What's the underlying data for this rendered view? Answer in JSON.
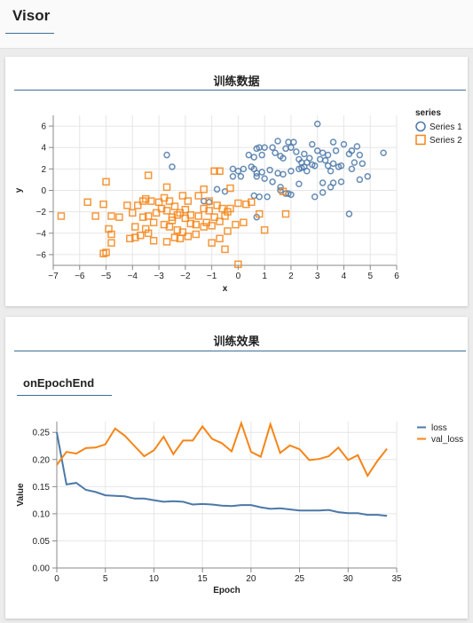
{
  "app": {
    "title": "Visor"
  },
  "card1": {
    "title": "训练数据",
    "chart_data": {
      "type": "scatter",
      "xlabel": "x",
      "ylabel": "y",
      "xlim": [
        -7,
        6
      ],
      "ylim": [
        -7,
        7
      ],
      "xticks": [
        -7,
        -6,
        -5,
        -4,
        -3,
        -2,
        -1,
        0,
        1,
        2,
        3,
        4,
        5,
        6
      ],
      "yticks": [
        -6,
        -4,
        -2,
        0,
        2,
        4,
        6
      ],
      "grid": true,
      "legend": {
        "title": "series",
        "position": "right"
      },
      "series": [
        {
          "name": "Series 1",
          "marker": "circle",
          "color": "#4c78a8",
          "points": [
            [
              3.0,
              6.2
            ],
            [
              1.5,
              4.6
            ],
            [
              1.9,
              4.5
            ],
            [
              2.1,
              4.5
            ],
            [
              3.6,
              4.5
            ],
            [
              4.0,
              4.3
            ],
            [
              4.3,
              3.7
            ],
            [
              4.5,
              4.1
            ],
            [
              2.8,
              4.3
            ],
            [
              5.5,
              3.5
            ],
            [
              0.7,
              3.9
            ],
            [
              0.8,
              4.0
            ],
            [
              1.0,
              4.0
            ],
            [
              1.3,
              4.0
            ],
            [
              1.8,
              3.9
            ],
            [
              2.0,
              4.0
            ],
            [
              2.2,
              3.6
            ],
            [
              2.5,
              3.4
            ],
            [
              2.7,
              3.0
            ],
            [
              3.0,
              3.7
            ],
            [
              3.2,
              3.5
            ],
            [
              3.4,
              3.3
            ],
            [
              3.7,
              3.7
            ],
            [
              4.2,
              3.4
            ],
            [
              4.6,
              3.3
            ],
            [
              -2.7,
              3.3
            ],
            [
              -2.5,
              2.2
            ],
            [
              0.4,
              3.3
            ],
            [
              0.6,
              3.1
            ],
            [
              0.9,
              3.3
            ],
            [
              1.4,
              3.5
            ],
            [
              1.6,
              3.2
            ],
            [
              1.7,
              3.0
            ],
            [
              2.3,
              2.9
            ],
            [
              2.4,
              2.6
            ],
            [
              2.6,
              2.6
            ],
            [
              2.8,
              2.4
            ],
            [
              3.1,
              2.9
            ],
            [
              3.3,
              2.8
            ],
            [
              3.6,
              2.5
            ],
            [
              3.9,
              2.3
            ],
            [
              4.4,
              2.6
            ],
            [
              4.7,
              2.5
            ],
            [
              -0.2,
              2.0
            ],
            [
              0.0,
              1.8
            ],
            [
              0.2,
              2.0
            ],
            [
              0.5,
              2.2
            ],
            [
              0.6,
              2.0
            ],
            [
              0.7,
              1.6
            ],
            [
              0.9,
              1.7
            ],
            [
              1.2,
              1.9
            ],
            [
              1.5,
              1.6
            ],
            [
              1.7,
              1.5
            ],
            [
              2.0,
              1.8
            ],
            [
              2.3,
              2.0
            ],
            [
              2.4,
              2.1
            ],
            [
              2.5,
              2.2
            ],
            [
              2.6,
              1.8
            ],
            [
              2.9,
              2.3
            ],
            [
              3.4,
              2.3
            ],
            [
              3.5,
              1.8
            ],
            [
              3.8,
              2.2
            ],
            [
              4.3,
              2.0
            ],
            [
              4.9,
              1.3
            ],
            [
              -0.2,
              1.3
            ],
            [
              0.1,
              1.3
            ],
            [
              0.7,
              1.3
            ],
            [
              1.0,
              1.1
            ],
            [
              1.3,
              0.8
            ],
            [
              1.6,
              0.3
            ],
            [
              1.9,
              -0.3
            ],
            [
              2.0,
              -0.4
            ],
            [
              2.3,
              0.6
            ],
            [
              3.2,
              0.7
            ],
            [
              3.5,
              0.3
            ],
            [
              3.6,
              0.7
            ],
            [
              3.9,
              0.8
            ],
            [
              4.6,
              1.0
            ],
            [
              -0.8,
              0.1
            ],
            [
              -0.5,
              -0.1
            ],
            [
              -1.3,
              -1.0
            ],
            [
              -1.1,
              -1.1
            ],
            [
              0.6,
              -0.5
            ],
            [
              0.8,
              -0.6
            ],
            [
              1.1,
              -0.6
            ],
            [
              1.6,
              0.0
            ],
            [
              1.8,
              -0.3
            ],
            [
              2.9,
              -0.6
            ],
            [
              3.2,
              -0.2
            ],
            [
              4.2,
              -2.2
            ],
            [
              0.7,
              -2.5
            ]
          ]
        },
        {
          "name": "Series 2",
          "marker": "square",
          "color": "#f58518",
          "points": [
            [
              -6.7,
              -2.4
            ],
            [
              -5.7,
              -1.1
            ],
            [
              -5.0,
              0.8
            ],
            [
              -3.4,
              1.4
            ],
            [
              -2.7,
              0.3
            ],
            [
              -2.1,
              -0.5
            ],
            [
              -1.3,
              0.1
            ],
            [
              -0.9,
              1.8
            ],
            [
              -0.7,
              1.8
            ],
            [
              -0.3,
              0.2
            ],
            [
              -5.4,
              -2.4
            ],
            [
              -5.1,
              -1.3
            ],
            [
              -4.8,
              -2.4
            ],
            [
              -4.9,
              -3.6
            ],
            [
              -4.8,
              -4.1
            ],
            [
              -4.8,
              -4.9
            ],
            [
              -5.1,
              -5.9
            ],
            [
              -5.0,
              -5.8
            ],
            [
              -4.5,
              -2.5
            ],
            [
              -4.2,
              -1.4
            ],
            [
              -4.0,
              -2.1
            ],
            [
              -3.8,
              -1.4
            ],
            [
              -3.6,
              -1.0
            ],
            [
              -3.5,
              -0.8
            ],
            [
              -3.3,
              -1.0
            ],
            [
              -3.6,
              -2.5
            ],
            [
              -3.4,
              -2.4
            ],
            [
              -3.2,
              -3.0
            ],
            [
              -3.1,
              -2.1
            ],
            [
              -2.9,
              -1.7
            ],
            [
              -3.5,
              -3.6
            ],
            [
              -3.4,
              -4.0
            ],
            [
              -3.2,
              -4.7
            ],
            [
              -3.9,
              -3.4
            ],
            [
              -3.7,
              -4.2
            ],
            [
              -3.9,
              -4.4
            ],
            [
              -2.8,
              -0.7
            ],
            [
              -2.6,
              -1.0
            ],
            [
              -2.4,
              -1.5
            ],
            [
              -2.2,
              -2.1
            ],
            [
              -2.0,
              -1.8
            ],
            [
              -1.8,
              -2.3
            ],
            [
              -1.5,
              -2.4
            ],
            [
              -1.3,
              -1.7
            ],
            [
              -1.1,
              -1.9
            ],
            [
              -0.8,
              -1.4
            ],
            [
              -0.6,
              -1.7
            ],
            [
              -0.3,
              -1.7
            ],
            [
              0.0,
              -1.2
            ],
            [
              0.3,
              -1.3
            ],
            [
              0.5,
              -1.1
            ],
            [
              -2.7,
              -1.9
            ],
            [
              -2.5,
              -2.5
            ],
            [
              -2.3,
              -2.3
            ],
            [
              -2.0,
              -2.6
            ],
            [
              -1.8,
              -3.1
            ],
            [
              -1.6,
              -3.2
            ],
            [
              -1.2,
              -3.0
            ],
            [
              -1.0,
              -3.3
            ],
            [
              -0.9,
              -2.5
            ],
            [
              -0.7,
              -2.9
            ],
            [
              -0.5,
              -2.4
            ],
            [
              -2.8,
              -3.2
            ],
            [
              -2.6,
              -3.4
            ],
            [
              -2.3,
              -3.7
            ],
            [
              -2.1,
              -3.9
            ],
            [
              -1.9,
              -4.3
            ],
            [
              -1.6,
              -4.1
            ],
            [
              -1.3,
              -3.4
            ],
            [
              -1.0,
              -4.9
            ],
            [
              -0.7,
              -4.5
            ],
            [
              -0.4,
              -3.8
            ],
            [
              -0.1,
              -3.2
            ],
            [
              0.2,
              -3.0
            ],
            [
              -2.7,
              -4.8
            ],
            [
              -2.4,
              -4.4
            ],
            [
              -2.2,
              -4.5
            ],
            [
              -0.5,
              -5.5
            ],
            [
              0.0,
              -6.9
            ],
            [
              0.8,
              -2.2
            ],
            [
              1.0,
              -3.7
            ],
            [
              1.7,
              -0.1
            ],
            [
              1.8,
              -2.2
            ],
            [
              -1.5,
              -0.5
            ],
            [
              -1.9,
              -1.0
            ],
            [
              -3.0,
              -1.1
            ],
            [
              -4.1,
              -4.5
            ],
            [
              -0.4,
              -2.0
            ],
            [
              -1.1,
              -1.0
            ],
            [
              -2.5,
              -2.8
            ]
          ]
        }
      ]
    }
  },
  "card2": {
    "title": "训练效果",
    "tab": "onEpochEnd",
    "chart_data": {
      "type": "line",
      "xlabel": "Epoch",
      "ylabel": "Value",
      "xlim": [
        0,
        35
      ],
      "ylim": [
        0,
        0.27
      ],
      "xticks": [
        0,
        5,
        10,
        15,
        20,
        25,
        30,
        35
      ],
      "yticks": [
        0.0,
        0.05,
        0.1,
        0.15,
        0.2,
        0.25
      ],
      "ytick_labels": [
        "0.00",
        "0.05",
        "0.10",
        "0.15",
        "0.20",
        "0.25"
      ],
      "grid": true,
      "legend": {
        "position": "right"
      },
      "x": [
        0,
        1,
        2,
        3,
        4,
        5,
        6,
        7,
        8,
        9,
        10,
        11,
        12,
        13,
        14,
        15,
        16,
        17,
        18,
        19,
        20,
        21,
        22,
        23,
        24,
        25,
        26,
        27,
        28,
        29,
        30,
        31,
        32,
        33,
        34
      ],
      "series": [
        {
          "name": "loss",
          "color": "#4c78a8",
          "values": [
            0.25,
            0.154,
            0.157,
            0.144,
            0.14,
            0.134,
            0.133,
            0.132,
            0.128,
            0.128,
            0.125,
            0.122,
            0.123,
            0.122,
            0.117,
            0.118,
            0.117,
            0.115,
            0.114,
            0.116,
            0.116,
            0.112,
            0.109,
            0.11,
            0.108,
            0.106,
            0.106,
            0.106,
            0.107,
            0.103,
            0.101,
            0.101,
            0.098,
            0.098,
            0.096
          ]
        },
        {
          "name": "val_loss",
          "color": "#f58518",
          "values": [
            0.19,
            0.214,
            0.211,
            0.221,
            0.222,
            0.228,
            0.257,
            0.244,
            0.225,
            0.206,
            0.217,
            0.242,
            0.21,
            0.235,
            0.235,
            0.261,
            0.238,
            0.23,
            0.215,
            0.267,
            0.214,
            0.205,
            0.265,
            0.212,
            0.226,
            0.219,
            0.199,
            0.201,
            0.206,
            0.222,
            0.199,
            0.208,
            0.17,
            0.197,
            0.22
          ]
        }
      ]
    }
  }
}
